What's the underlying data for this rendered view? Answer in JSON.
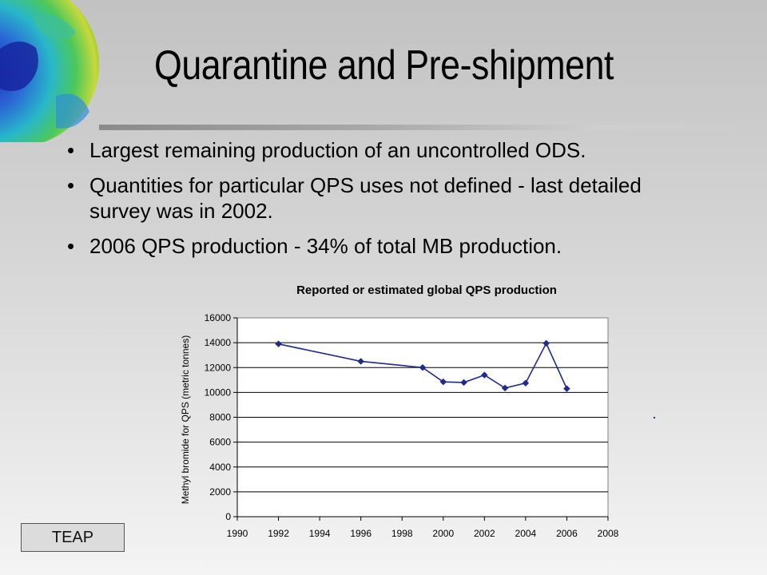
{
  "slide": {
    "title": "Quarantine and Pre-shipment",
    "bullets": [
      "Largest remaining production of an uncontrolled ODS.",
      "Quantities for particular QPS uses not defined - last detailed survey was in 2002.",
      "2006 QPS production - 34% of total MB production."
    ],
    "footer_badge": "TEAP"
  },
  "colors": {
    "series": "#1f2a8f",
    "accent": "#000000"
  },
  "icons": {
    "globe": "globe-ozone-icon"
  },
  "chart_data": {
    "type": "line",
    "title": "Reported or estimated global QPS production",
    "xlabel": "",
    "ylabel": "Methyl bromide for QPS (metric tonnes)",
    "xlim": [
      1990,
      2008
    ],
    "ylim": [
      0,
      16000
    ],
    "x_ticks": [
      1990,
      1992,
      1994,
      1996,
      1998,
      2000,
      2002,
      2004,
      2006,
      2008
    ],
    "y_ticks": [
      0,
      2000,
      4000,
      6000,
      8000,
      10000,
      12000,
      14000,
      16000
    ],
    "grid": "horizontal",
    "series": [
      {
        "x": [
          1992,
          1996,
          1999,
          2000,
          2001,
          2002,
          2003,
          2004,
          2005,
          2006
        ],
        "values": [
          13900,
          12500,
          12000,
          10850,
          10800,
          11400,
          10350,
          10750,
          13950,
          10300
        ]
      }
    ]
  }
}
